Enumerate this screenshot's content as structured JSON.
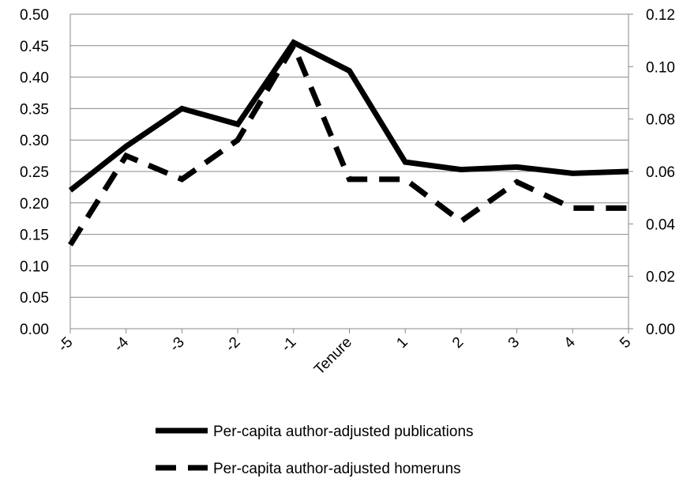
{
  "chart_data": {
    "type": "line",
    "categories": [
      "-5",
      "-4",
      "-3",
      "-2",
      "-1",
      "Tenure",
      "1",
      "2",
      "3",
      "4",
      "5"
    ],
    "series": [
      {
        "name": "Per-capita author-adjusted publications",
        "axis": "left",
        "style": "solid",
        "values": [
          0.22,
          0.29,
          0.35,
          0.325,
          0.455,
          0.41,
          0.265,
          0.253,
          0.257,
          0.247,
          0.25
        ]
      },
      {
        "name": "Per-capita author-adjusted homeruns",
        "axis": "right",
        "style": "dashed",
        "values": [
          0.032,
          0.066,
          0.057,
          0.072,
          0.108,
          0.057,
          0.057,
          0.041,
          0.056,
          0.046,
          0.046
        ]
      }
    ],
    "y_left": {
      "ylim": [
        0,
        0.5
      ],
      "ticks": [
        "0.00",
        "0.05",
        "0.10",
        "0.15",
        "0.20",
        "0.25",
        "0.30",
        "0.35",
        "0.40",
        "0.45",
        "0.50"
      ]
    },
    "y_right": {
      "ylim": [
        0,
        0.12
      ],
      "ticks": [
        "0.00",
        "0.02",
        "0.04",
        "0.06",
        "0.08",
        "0.10",
        "0.12"
      ]
    },
    "grid": true,
    "legend_position": "bottom",
    "line_color": "#000000",
    "grid_color": "#888888"
  }
}
